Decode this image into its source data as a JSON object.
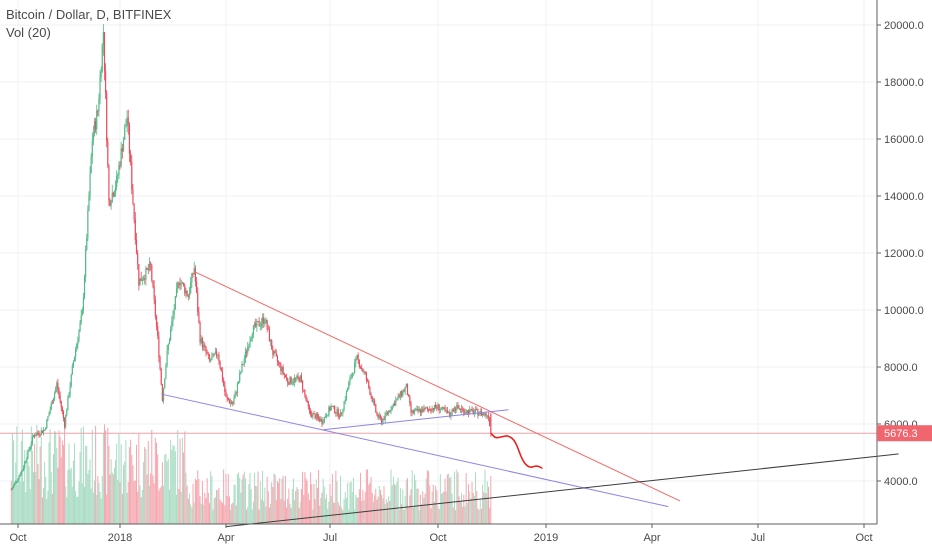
{
  "header": {
    "title": "Bitcoin / Dollar, D, BITFINEX",
    "indicator": "Vol (20)"
  },
  "colors": {
    "up": "#53b987",
    "down": "#eb4d5c",
    "upVol": "#a9dcc3",
    "downVol": "#f5a6ae",
    "grid": "#eef1f4",
    "axis": "#5f5f5f",
    "priceLine": "#f2a0a8",
    "priceLabel": "#f0656e",
    "redTrend": "#f26a6a",
    "blueTrend": "#8c83e6",
    "blackTrend": "#3c3c3c",
    "projection": "#e8211e"
  },
  "chart_data": {
    "type": "candlestick",
    "title": "Bitcoin / Dollar, D, BITFINEX",
    "indicator": "Vol (20)",
    "x_ticks": [
      "Oct",
      "2018",
      "Apr",
      "Jul",
      "Oct",
      "2019",
      "Apr",
      "Jul",
      "Oct"
    ],
    "y_ticks": [
      "4000.0",
      "6000.0",
      "8000.0",
      "10000.0",
      "12000.0",
      "14000.0",
      "16000.0",
      "18000.0",
      "20000.0"
    ],
    "ylim": [
      2200,
      20900
    ],
    "grid": true,
    "last_price": 5676.3,
    "last_price_label": "5676.3",
    "price_path": [
      [
        "2017-09-25",
        3700
      ],
      [
        "2017-10-05",
        4400
      ],
      [
        "2017-10-15",
        5600
      ],
      [
        "2017-10-25",
        5800
      ],
      [
        "2017-11-05",
        7400
      ],
      [
        "2017-11-12",
        6000
      ],
      [
        "2017-11-20",
        8200
      ],
      [
        "2017-11-28",
        9900
      ],
      [
        "2017-12-07",
        16000
      ],
      [
        "2017-12-12",
        17000
      ],
      [
        "2017-12-17",
        19800
      ],
      [
        "2017-12-22",
        13800
      ],
      [
        "2017-12-29",
        14500
      ],
      [
        "2018-01-07",
        16800
      ],
      [
        "2018-01-12",
        13800
      ],
      [
        "2018-01-17",
        11000
      ],
      [
        "2018-01-27",
        11500
      ],
      [
        "2018-02-02",
        9000
      ],
      [
        "2018-02-06",
        6900
      ],
      [
        "2018-02-10",
        8500
      ],
      [
        "2018-02-20",
        11100
      ],
      [
        "2018-02-28",
        10500
      ],
      [
        "2018-03-05",
        11500
      ],
      [
        "2018-03-10",
        9000
      ],
      [
        "2018-03-18",
        8200
      ],
      [
        "2018-03-25",
        8500
      ],
      [
        "2018-04-01",
        6900
      ],
      [
        "2018-04-07",
        6700
      ],
      [
        "2018-04-15",
        8000
      ],
      [
        "2018-04-24",
        9300
      ],
      [
        "2018-05-05",
        9700
      ],
      [
        "2018-05-12",
        8500
      ],
      [
        "2018-05-25",
        7500
      ],
      [
        "2018-06-05",
        7600
      ],
      [
        "2018-06-13",
        6400
      ],
      [
        "2018-06-24",
        6100
      ],
      [
        "2018-07-02",
        6600
      ],
      [
        "2018-07-10",
        6300
      ],
      [
        "2018-07-17",
        7400
      ],
      [
        "2018-07-24",
        8300
      ],
      [
        "2018-07-31",
        7700
      ],
      [
        "2018-08-10",
        6300
      ],
      [
        "2018-08-14",
        6100
      ],
      [
        "2018-08-24",
        6700
      ],
      [
        "2018-09-04",
        7300
      ],
      [
        "2018-09-08",
        6400
      ],
      [
        "2018-09-20",
        6500
      ],
      [
        "2018-10-01",
        6600
      ],
      [
        "2018-10-11",
        6300
      ],
      [
        "2018-10-15",
        6600
      ],
      [
        "2018-10-25",
        6450
      ],
      [
        "2018-11-05",
        6400
      ],
      [
        "2018-11-13",
        6300
      ],
      [
        "2018-11-15",
        5676
      ]
    ],
    "projection_path": [
      [
        "2018-11-15",
        5676
      ],
      [
        "2018-11-19",
        5500
      ],
      [
        "2018-11-24",
        5550
      ],
      [
        "2018-11-30",
        5600
      ],
      [
        "2018-12-06",
        5400
      ],
      [
        "2018-12-12",
        4700
      ],
      [
        "2018-12-18",
        4450
      ],
      [
        "2018-12-24",
        4550
      ],
      [
        "2018-12-29",
        4450
      ]
    ],
    "trendlines": [
      {
        "name": "red",
        "from": [
          "2018-03-05",
          11350
        ],
        "to": [
          "2019-04-25",
          3300
        ]
      },
      {
        "name": "blue-lower",
        "from": [
          "2018-02-05",
          7050
        ],
        "to": [
          "2019-04-15",
          3100
        ]
      },
      {
        "name": "blue-upper",
        "from": [
          "2018-06-25",
          5800
        ],
        "to": [
          "2018-11-30",
          6500
        ]
      },
      {
        "name": "black",
        "from": [
          "2018-04-01",
          2400
        ],
        "to": [
          "2019-10-31",
          4950
        ]
      }
    ]
  }
}
